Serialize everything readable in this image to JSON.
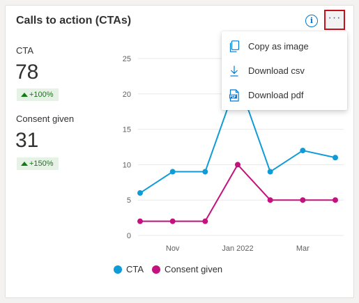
{
  "card": {
    "title": "Calls to action (CTAs)"
  },
  "header": {
    "info_glyph": "i",
    "more_glyph": "···"
  },
  "kpis": [
    {
      "label": "CTA",
      "value": "78",
      "change": "+100%"
    },
    {
      "label": "Consent given",
      "value": "31",
      "change": "+150%"
    }
  ],
  "menu": {
    "items": [
      {
        "label": "Copy as image",
        "icon": "copy-icon"
      },
      {
        "label": "Download csv",
        "icon": "download-icon"
      },
      {
        "label": "Download pdf",
        "icon": "pdf-icon"
      }
    ]
  },
  "colors": {
    "cta": "#0f9bd7",
    "consent": "#c3127e",
    "accent": "#0078d4",
    "highlight_border": "#c50f1f",
    "positive": "#107c10"
  },
  "chart_data": {
    "type": "line",
    "title": "",
    "xlabel": "",
    "ylabel": "",
    "ylim": [
      0,
      25
    ],
    "yticks": [
      0,
      5,
      10,
      15,
      20,
      25
    ],
    "x_tick_labels": [
      {
        "index": 1,
        "label": "Nov"
      },
      {
        "index": 3,
        "label": "Jan 2022"
      },
      {
        "index": 5,
        "label": "Mar"
      }
    ],
    "grid": true,
    "legend": "bottom",
    "series": [
      {
        "name": "CTA",
        "values": [
          6,
          9,
          9,
          22,
          9,
          12,
          11
        ]
      },
      {
        "name": "Consent given",
        "values": [
          2,
          2,
          2,
          10,
          5,
          5,
          5
        ]
      }
    ]
  }
}
